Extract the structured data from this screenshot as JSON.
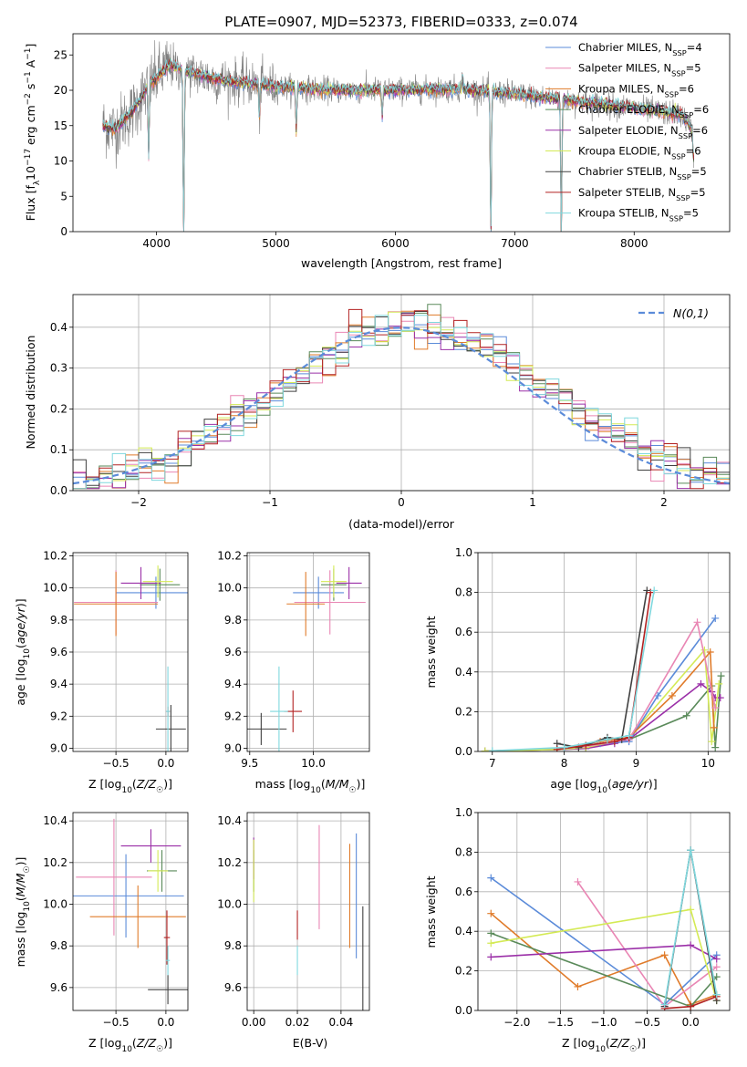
{
  "figure_title": "PLATE=0907, MJD=52373, FIBERID=0333, z=0.074",
  "colors": {
    "Chabrier MILES": "#5b8bd9",
    "Salpeter MILES": "#e986b4",
    "Kroupa MILES": "#e07b2a",
    "Chabrier ELODIE": "#5a8a5a",
    "Salpeter ELODIE": "#9b30a8",
    "Kroupa ELODIE": "#d4ea55",
    "Chabrier STELIB": "#404040",
    "Salpeter STELIB": "#b22222",
    "Kroupa STELIB": "#7fd8de",
    "data": "#7f7f7f",
    "gauss": "#5b8bd9"
  },
  "chart_data": [
    {
      "id": "spectrum",
      "type": "line",
      "title": "PLATE=0907, MJD=52373, FIBERID=0333, z=0.074",
      "xlabel": "wavelength [Angstrom, rest frame]",
      "ylabel": "Flux [f_λ 10^-17 erg cm^-2 s^-1 A^-1]",
      "xlim": [
        3300,
        8800
      ],
      "ylim": [
        0,
        28
      ],
      "xticks": [
        4000,
        5000,
        6000,
        7000,
        8000
      ],
      "yticks": [
        0,
        5,
        10,
        15,
        20,
        25
      ],
      "legend_position": "top-right",
      "legend": [
        {
          "label": "Chabrier MILES, N",
          "sub": "SSP",
          "value": "=4",
          "model": "Chabrier MILES"
        },
        {
          "label": "Salpeter MILES, N",
          "sub": "SSP",
          "value": "=5",
          "model": "Salpeter MILES"
        },
        {
          "label": "Kroupa MILES, N",
          "sub": "SSP",
          "value": "=6",
          "model": "Kroupa MILES"
        },
        {
          "label": "Chabrier ELODIE, N",
          "sub": "SSP",
          "value": "=6",
          "model": "Chabrier ELODIE"
        },
        {
          "label": "Salpeter ELODIE, N",
          "sub": "SSP",
          "value": "=6",
          "model": "Salpeter ELODIE"
        },
        {
          "label": "Kroupa ELODIE, N",
          "sub": "SSP",
          "value": "=6",
          "model": "Kroupa ELODIE"
        },
        {
          "label": "Chabrier STELIB, N",
          "sub": "SSP",
          "value": "=5",
          "model": "Chabrier STELIB"
        },
        {
          "label": "Salpeter STELIB, N",
          "sub": "SSP",
          "value": "=5",
          "model": "Salpeter STELIB"
        },
        {
          "label": "Kroupa STELIB, N",
          "sub": "SSP",
          "value": "=5",
          "model": "Kroupa STELIB"
        }
      ],
      "continuum": [
        [
          3550,
          15
        ],
        [
          3650,
          14.5
        ],
        [
          3800,
          17
        ],
        [
          3950,
          21
        ],
        [
          4100,
          23.5
        ],
        [
          4300,
          22.5
        ],
        [
          4500,
          21.5
        ],
        [
          4800,
          21
        ],
        [
          5000,
          20.5
        ],
        [
          5500,
          20
        ],
        [
          6000,
          20
        ],
        [
          6500,
          20.2
        ],
        [
          7000,
          19.5
        ],
        [
          7500,
          18.5
        ],
        [
          8000,
          17.5
        ],
        [
          8400,
          16.5
        ],
        [
          8500,
          14
        ]
      ],
      "lines": [
        [
          3934,
          -10
        ],
        [
          4227,
          -24
        ],
        [
          4861,
          -5
        ],
        [
          5170,
          -6
        ],
        [
          5890,
          -4
        ],
        [
          6563,
          2
        ],
        [
          6800,
          -21
        ],
        [
          7390,
          -20
        ],
        [
          8498,
          -4
        ],
        [
          8542,
          -6
        ]
      ]
    },
    {
      "id": "residuals",
      "type": "histogram",
      "xlabel": "(data-model)/error",
      "ylabel": "Normed distribution",
      "xlim": [
        -2.5,
        2.5
      ],
      "ylim": [
        0,
        0.48
      ],
      "xticks": [
        -2,
        -1,
        0,
        1,
        2
      ],
      "yticks": [
        0.0,
        0.1,
        0.2,
        0.3,
        0.4
      ],
      "legend_position": "top-right",
      "legend_label": "N(0,1)",
      "bin_width": 0.1,
      "bins_from": -2.5,
      "bins_to": 2.5
    },
    {
      "id": "age-vs-Z",
      "type": "errorbar",
      "xlabel": "Z [log10(Z/Z☉)]",
      "ylabel": "age [log10(age/yr)]",
      "xlim": [
        -0.93,
        0.22
      ],
      "ylim": [
        8.98,
        10.22
      ],
      "xticks": [
        -0.5,
        0.0
      ],
      "yticks": [
        9.0,
        9.2,
        9.4,
        9.6,
        9.8,
        10.0,
        10.2
      ],
      "points": [
        {
          "model": "Chabrier MILES",
          "x": -0.1,
          "xerr": 0.4,
          "y": 9.97,
          "yerr": 0.1
        },
        {
          "model": "Salpeter MILES",
          "x": -0.5,
          "xerr": 0.42,
          "y": 9.91,
          "yerr": 0.2
        },
        {
          "model": "Kroupa MILES",
          "x": -0.5,
          "xerr": 0.42,
          "y": 9.9,
          "yerr": 0.2
        },
        {
          "model": "Chabrier ELODIE",
          "x": -0.06,
          "xerr": 0.2,
          "y": 10.02,
          "yerr": 0.1
        },
        {
          "model": "Salpeter ELODIE",
          "x": -0.25,
          "xerr": 0.2,
          "y": 10.03,
          "yerr": 0.1
        },
        {
          "model": "Kroupa ELODIE",
          "x": -0.08,
          "xerr": 0.15,
          "y": 10.04,
          "yerr": 0.1
        },
        {
          "model": "Chabrier STELIB",
          "x": 0.05,
          "xerr": 0.15,
          "y": 9.12,
          "yerr": 0.15
        },
        {
          "model": "Salpeter STELIB",
          "x": 0.02,
          "xerr": 0.02,
          "y": 9.23,
          "yerr": 0.03
        },
        {
          "model": "Kroupa STELIB",
          "x": 0.02,
          "xerr": 0.02,
          "y": 9.23,
          "yerr": 0.28
        }
      ]
    },
    {
      "id": "age-vs-mass",
      "type": "errorbar",
      "xlabel": "mass [log10(M/M☉)]",
      "ylabel": "",
      "xlim": [
        9.48,
        10.44
      ],
      "ylim": [
        8.98,
        10.22
      ],
      "xticks": [
        9.5,
        10.0
      ],
      "yticks": [
        9.0,
        9.2,
        9.4,
        9.6,
        9.8,
        10.0,
        10.2
      ],
      "points": [
        {
          "model": "Chabrier MILES",
          "x": 10.04,
          "xerr": 0.2,
          "y": 9.97,
          "yerr": 0.1
        },
        {
          "model": "Salpeter MILES",
          "x": 10.13,
          "xerr": 0.28,
          "y": 9.91,
          "yerr": 0.2
        },
        {
          "model": "Kroupa MILES",
          "x": 9.94,
          "xerr": 0.15,
          "y": 9.9,
          "yerr": 0.2
        },
        {
          "model": "Chabrier ELODIE",
          "x": 10.16,
          "xerr": 0.1,
          "y": 10.02,
          "yerr": 0.1
        },
        {
          "model": "Salpeter ELODIE",
          "x": 10.28,
          "xerr": 0.1,
          "y": 10.03,
          "yerr": 0.1
        },
        {
          "model": "Kroupa ELODIE",
          "x": 10.16,
          "xerr": 0.1,
          "y": 10.04,
          "yerr": 0.1
        },
        {
          "model": "Chabrier STELIB",
          "x": 9.59,
          "xerr": 0.2,
          "y": 9.12,
          "yerr": 0.1
        },
        {
          "model": "Salpeter STELIB",
          "x": 9.84,
          "xerr": 0.07,
          "y": 9.23,
          "yerr": 0.13
        },
        {
          "model": "Kroupa STELIB",
          "x": 9.73,
          "xerr": 0.07,
          "y": 9.23,
          "yerr": 0.28
        }
      ]
    },
    {
      "id": "weight-vs-age",
      "type": "line",
      "xlabel": "age [log10(age/yr)]",
      "ylabel": "mass weight",
      "xlim": [
        6.8,
        10.3
      ],
      "ylim": [
        0,
        1.0
      ],
      "xticks": [
        7,
        8,
        9,
        10
      ],
      "yticks": [
        0.0,
        0.2,
        0.4,
        0.6,
        0.8,
        1.0
      ],
      "series": [
        {
          "model": "Chabrier ELODIE",
          "points": [
            [
              6.9,
              0.002
            ],
            [
              7.9,
              0.01
            ],
            [
              8.3,
              0.015
            ],
            [
              8.7,
              0.05
            ],
            [
              8.9,
              0.06
            ],
            [
              9.7,
              0.18
            ],
            [
              10.05,
              0.33
            ],
            [
              10.1,
              0.02
            ],
            [
              10.18,
              0.38
            ]
          ]
        },
        {
          "model": "Salpeter ELODIE",
          "points": [
            [
              6.9,
              0.002
            ],
            [
              7.9,
              0.01
            ],
            [
              8.3,
              0.015
            ],
            [
              8.7,
              0.04
            ],
            [
              8.9,
              0.06
            ],
            [
              9.9,
              0.34
            ],
            [
              10.05,
              0.3
            ],
            [
              10.1,
              0.27
            ],
            [
              10.17,
              0.27
            ]
          ]
        },
        {
          "model": "Kroupa ELODIE",
          "points": [
            [
              6.9,
              0.002
            ],
            [
              7.9,
              0.01
            ],
            [
              8.3,
              0.02
            ],
            [
              8.7,
              0.05
            ],
            [
              8.9,
              0.07
            ],
            [
              9.95,
              0.51
            ],
            [
              10.05,
              0.05
            ],
            [
              10.15,
              0.34
            ]
          ]
        },
        {
          "model": "Chabrier MILES",
          "points": [
            [
              8.0,
              0.02
            ],
            [
              8.5,
              0.04
            ],
            [
              8.9,
              0.05
            ],
            [
              9.3,
              0.28
            ],
            [
              10.1,
              0.67
            ]
          ]
        },
        {
          "model": "Kroupa MILES",
          "points": [
            [
              8.0,
              0.02
            ],
            [
              8.5,
              0.05
            ],
            [
              8.9,
              0.07
            ],
            [
              9.5,
              0.28
            ],
            [
              10.03,
              0.5
            ],
            [
              10.08,
              0.12
            ]
          ]
        },
        {
          "model": "Salpeter MILES",
          "points": [
            [
              8.2,
              0.02
            ],
            [
              8.9,
              0.06
            ],
            [
              9.85,
              0.65
            ],
            [
              10.1,
              0.22
            ]
          ]
        },
        {
          "model": "Chabrier STELIB",
          "points": [
            [
              7.9,
              0.04
            ],
            [
              8.2,
              0.02
            ],
            [
              8.6,
              0.07
            ],
            [
              8.8,
              0.06
            ],
            [
              9.15,
              0.81
            ]
          ]
        },
        {
          "model": "Salpeter STELIB",
          "points": [
            [
              7.9,
              0.01
            ],
            [
              8.3,
              0.03
            ],
            [
              8.7,
              0.05
            ],
            [
              8.9,
              0.07
            ],
            [
              9.2,
              0.8
            ]
          ]
        },
        {
          "model": "Kroupa STELIB",
          "points": [
            [
              7.0,
              0.003
            ],
            [
              8.0,
              0.02
            ],
            [
              8.6,
              0.06
            ],
            [
              8.9,
              0.08
            ],
            [
              9.25,
              0.81
            ]
          ]
        }
      ]
    },
    {
      "id": "mass-vs-Z",
      "type": "errorbar",
      "xlabel": "Z [log10(Z/Z☉)]",
      "ylabel": "mass [log10(M/M☉)]",
      "xlim": [
        -0.93,
        0.22
      ],
      "ylim": [
        9.49,
        10.44
      ],
      "xticks": [
        -0.5,
        0.0
      ],
      "yticks": [
        9.6,
        9.8,
        10.0,
        10.2,
        10.4
      ],
      "points": [
        {
          "model": "Chabrier MILES",
          "x": -0.4,
          "xerr": 0.58,
          "y": 10.04,
          "yerr": 0.2
        },
        {
          "model": "Salpeter MILES",
          "x": -0.52,
          "xerr": 0.38,
          "y": 10.13,
          "yerr": 0.28
        },
        {
          "model": "Kroupa MILES",
          "x": -0.28,
          "xerr": 0.48,
          "y": 9.94,
          "yerr": 0.15
        },
        {
          "model": "Chabrier ELODIE",
          "x": -0.04,
          "xerr": 0.15,
          "y": 10.16,
          "yerr": 0.1
        },
        {
          "model": "Salpeter ELODIE",
          "x": -0.15,
          "xerr": 0.3,
          "y": 10.28,
          "yerr": 0.08
        },
        {
          "model": "Kroupa ELODIE",
          "x": -0.08,
          "xerr": 0.1,
          "y": 10.16,
          "yerr": 0.1
        },
        {
          "model": "Chabrier STELIB",
          "x": 0.02,
          "xerr": 0.2,
          "y": 9.59,
          "yerr": 0.07
        },
        {
          "model": "Salpeter STELIB",
          "x": 0.01,
          "xerr": 0.03,
          "y": 9.84,
          "yerr": 0.13
        },
        {
          "model": "Kroupa STELIB",
          "x": 0.02,
          "xerr": 0.02,
          "y": 9.73,
          "yerr": 0.07
        }
      ]
    },
    {
      "id": "mass-vs-EBV",
      "type": "errorbar",
      "xlabel": "E(B-V)",
      "ylabel": "",
      "xlim": [
        -0.003,
        0.053
      ],
      "ylim": [
        9.49,
        10.44
      ],
      "xticks": [
        0.0,
        0.02,
        0.04
      ],
      "yticks": [
        9.6,
        9.8,
        10.0,
        10.2,
        10.4
      ],
      "points": [
        {
          "model": "Chabrier MILES",
          "x": 0.047,
          "xerr": 0,
          "y": 10.04,
          "yerr": 0.3
        },
        {
          "model": "Salpeter MILES",
          "x": 0.03,
          "xerr": 0,
          "y": 10.13,
          "yerr": 0.25
        },
        {
          "model": "Kroupa MILES",
          "x": 0.044,
          "xerr": 0,
          "y": 10.04,
          "yerr": 0.25
        },
        {
          "model": "Chabrier ELODIE",
          "x": 0.0,
          "xerr": 0,
          "y": 10.16,
          "yerr": 0.1
        },
        {
          "model": "Salpeter ELODIE",
          "x": 0.0,
          "xerr": 0,
          "y": 10.22,
          "yerr": 0.1
        },
        {
          "model": "Kroupa ELODIE",
          "x": 0.0,
          "xerr": 0,
          "y": 10.16,
          "yerr": 0.15
        },
        {
          "model": "Chabrier STELIB",
          "x": 0.05,
          "xerr": 0,
          "y": 9.72,
          "yerr": 0.27
        },
        {
          "model": "Salpeter STELIB",
          "x": 0.02,
          "xerr": 0,
          "y": 9.9,
          "yerr": 0.07
        },
        {
          "model": "Kroupa STELIB",
          "x": 0.02,
          "xerr": 0,
          "y": 9.73,
          "yerr": 0.07
        }
      ]
    },
    {
      "id": "weight-vs-Z",
      "type": "line",
      "xlabel": "Z [log10(Z/Z☉)]",
      "ylabel": "mass weight",
      "xlim": [
        -2.45,
        0.45
      ],
      "ylim": [
        0,
        1.0
      ],
      "xticks": [
        -2.0,
        -1.5,
        -1.0,
        -0.5,
        0.0
      ],
      "yticks": [
        0.0,
        0.2,
        0.4,
        0.6,
        0.8,
        1.0
      ],
      "series": [
        {
          "model": "Chabrier MILES",
          "points": [
            [
              -2.3,
              0.67
            ],
            [
              -0.3,
              0.03
            ],
            [
              0.3,
              0.28
            ]
          ]
        },
        {
          "model": "Kroupa MILES",
          "points": [
            [
              -2.3,
              0.49
            ],
            [
              -1.3,
              0.12
            ],
            [
              -0.3,
              0.28
            ],
            [
              0.0,
              0.03
            ],
            [
              0.3,
              0.08
            ]
          ]
        },
        {
          "model": "Salpeter MILES",
          "points": [
            [
              -1.3,
              0.65
            ],
            [
              -0.3,
              0.02
            ],
            [
              0.3,
              0.22
            ]
          ]
        },
        {
          "model": "Chabrier ELODIE",
          "points": [
            [
              -2.3,
              0.39
            ],
            [
              0.0,
              0.02
            ],
            [
              0.3,
              0.17
            ]
          ]
        },
        {
          "model": "Salpeter ELODIE",
          "points": [
            [
              -2.3,
              0.27
            ],
            [
              0.0,
              0.33
            ],
            [
              0.3,
              0.26
            ]
          ]
        },
        {
          "model": "Kroupa ELODIE",
          "points": [
            [
              -2.3,
              0.34
            ],
            [
              0.0,
              0.51
            ],
            [
              0.3,
              0.05
            ]
          ]
        },
        {
          "model": "Chabrier STELIB",
          "points": [
            [
              -0.3,
              0.02
            ],
            [
              0.0,
              0.81
            ],
            [
              0.3,
              0.05
            ]
          ]
        },
        {
          "model": "Salpeter STELIB",
          "points": [
            [
              -0.3,
              0.01
            ],
            [
              0.0,
              0.02
            ],
            [
              0.3,
              0.07
            ]
          ]
        },
        {
          "model": "Kroupa STELIB",
          "points": [
            [
              -0.3,
              0.03
            ],
            [
              0.0,
              0.81
            ],
            [
              0.3,
              0.08
            ]
          ]
        }
      ]
    }
  ]
}
